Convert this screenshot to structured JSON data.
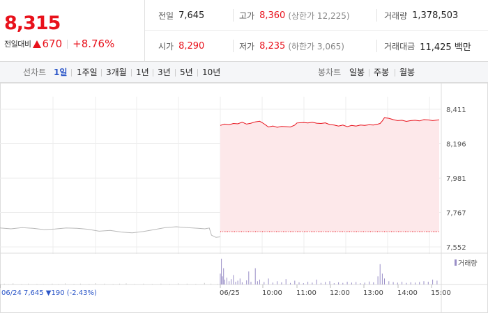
{
  "quote": {
    "price": "8,315",
    "change_label": "전일대비",
    "change_value": "670",
    "change_percent": "+8.76%",
    "direction": "up"
  },
  "stats": {
    "prev_close": {
      "label": "전일",
      "value": "7,645"
    },
    "high": {
      "label": "고가",
      "value": "8,360",
      "sub": "(상한가 12,225)"
    },
    "volume": {
      "label": "거래량",
      "value": "1,378,503"
    },
    "open": {
      "label": "시가",
      "value": "8,290"
    },
    "low": {
      "label": "저가",
      "value": "8,235",
      "sub": "(하한가 3,065)"
    },
    "trade_value": {
      "label": "거래대금",
      "value": "11,425 백만"
    }
  },
  "tabs": {
    "line_label": "선차트",
    "line_tabs": [
      "1일",
      "1주일",
      "3개월",
      "1년",
      "3년",
      "5년",
      "10년"
    ],
    "line_active": "1일",
    "candle_label": "봉차트",
    "candle_tabs": [
      "일봉",
      "주봉",
      "월봉"
    ]
  },
  "chart_data": {
    "type": "line",
    "y_ticks": [
      "8,411",
      "8,196",
      "7,981",
      "7,767",
      "7,552"
    ],
    "y_tick_values": [
      8411,
      8196,
      7981,
      7767,
      7552
    ],
    "x_tick_labels": [
      "06/24",
      "06/25",
      "10:00",
      "11:00",
      "12:00",
      "13:00",
      "14:00",
      "15:00"
    ],
    "prev_day_info": "06/24  7,645 ▼190 (-2.43%)",
    "volume_legend": "거래량",
    "baseline_value": 7645,
    "colors": {
      "today": "#e8111b",
      "prev": "#b8b8b8",
      "fill": "#fde8ea",
      "volume": "#9a8fc7"
    },
    "prev_series": [
      [
        0,
        7670
      ],
      [
        0.05,
        7665
      ],
      [
        0.1,
        7672
      ],
      [
        0.15,
        7668
      ],
      [
        0.2,
        7660
      ],
      [
        0.25,
        7664
      ],
      [
        0.3,
        7670
      ],
      [
        0.35,
        7668
      ],
      [
        0.4,
        7662
      ],
      [
        0.45,
        7650
      ],
      [
        0.5,
        7655
      ],
      [
        0.55,
        7645
      ],
      [
        0.6,
        7640
      ],
      [
        0.65,
        7648
      ],
      [
        0.7,
        7660
      ],
      [
        0.75,
        7672
      ],
      [
        0.8,
        7678
      ],
      [
        0.85,
        7672
      ],
      [
        0.9,
        7668
      ],
      [
        0.93,
        7665
      ],
      [
        0.95,
        7670
      ],
      [
        0.96,
        7625
      ],
      [
        0.98,
        7612
      ],
      [
        1,
        7615
      ]
    ],
    "today_series": [
      [
        0,
        8310
      ],
      [
        0.02,
        8318
      ],
      [
        0.04,
        8314
      ],
      [
        0.06,
        8322
      ],
      [
        0.08,
        8320
      ],
      [
        0.1,
        8330
      ],
      [
        0.12,
        8318
      ],
      [
        0.14,
        8324
      ],
      [
        0.16,
        8332
      ],
      [
        0.18,
        8336
      ],
      [
        0.2,
        8320
      ],
      [
        0.22,
        8300
      ],
      [
        0.24,
        8306
      ],
      [
        0.26,
        8298
      ],
      [
        0.28,
        8304
      ],
      [
        0.3,
        8302
      ],
      [
        0.32,
        8300
      ],
      [
        0.34,
        8312
      ],
      [
        0.35,
        8325
      ],
      [
        0.38,
        8328
      ],
      [
        0.4,
        8325
      ],
      [
        0.42,
        8330
      ],
      [
        0.44,
        8324
      ],
      [
        0.46,
        8322
      ],
      [
        0.48,
        8326
      ],
      [
        0.5,
        8315
      ],
      [
        0.52,
        8312
      ],
      [
        0.54,
        8306
      ],
      [
        0.56,
        8312
      ],
      [
        0.58,
        8302
      ],
      [
        0.6,
        8310
      ],
      [
        0.62,
        8306
      ],
      [
        0.64,
        8312
      ],
      [
        0.66,
        8310
      ],
      [
        0.68,
        8314
      ],
      [
        0.7,
        8312
      ],
      [
        0.72,
        8318
      ],
      [
        0.73,
        8322
      ],
      [
        0.74,
        8338
      ],
      [
        0.75,
        8358
      ],
      [
        0.77,
        8354
      ],
      [
        0.79,
        8346
      ],
      [
        0.81,
        8340
      ],
      [
        0.83,
        8342
      ],
      [
        0.85,
        8335
      ],
      [
        0.87,
        8340
      ],
      [
        0.89,
        8342
      ],
      [
        0.91,
        8338
      ],
      [
        0.93,
        8346
      ],
      [
        0.95,
        8344
      ],
      [
        0.97,
        8340
      ],
      [
        1,
        8345
      ]
    ],
    "volume_series": [
      [
        0.0,
        2
      ],
      [
        0.02,
        3
      ],
      [
        0.04,
        1
      ],
      [
        0.06,
        4
      ],
      [
        0.1,
        2
      ],
      [
        0.13,
        3
      ],
      [
        0.17,
        2
      ],
      [
        0.2,
        1
      ],
      [
        0.24,
        3
      ],
      [
        0.27,
        2
      ],
      [
        0.3,
        4
      ],
      [
        0.34,
        2
      ],
      [
        0.37,
        3
      ],
      [
        0.41,
        2
      ],
      [
        0.44,
        5
      ],
      [
        0.48,
        3
      ],
      [
        0.52,
        2
      ],
      [
        0.55,
        3
      ],
      [
        0.58,
        4
      ],
      [
        0.62,
        2
      ],
      [
        0.66,
        3
      ],
      [
        0.7,
        2
      ],
      [
        0.74,
        3
      ],
      [
        0.78,
        2
      ],
      [
        0.82,
        4
      ],
      [
        0.86,
        3
      ],
      [
        0.9,
        2
      ],
      [
        0.94,
        6
      ],
      [
        0.97,
        3
      ],
      [
        1.0,
        2
      ]
    ],
    "volume_series_today": [
      [
        0.0,
        40
      ],
      [
        0.005,
        95
      ],
      [
        0.01,
        30
      ],
      [
        0.015,
        60
      ],
      [
        0.02,
        18
      ],
      [
        0.03,
        25
      ],
      [
        0.04,
        12
      ],
      [
        0.05,
        20
      ],
      [
        0.06,
        35
      ],
      [
        0.07,
        10
      ],
      [
        0.08,
        14
      ],
      [
        0.09,
        22
      ],
      [
        0.1,
        8
      ],
      [
        0.12,
        15
      ],
      [
        0.13,
        48
      ],
      [
        0.14,
        10
      ],
      [
        0.16,
        60
      ],
      [
        0.17,
        12
      ],
      [
        0.18,
        18
      ],
      [
        0.2,
        9
      ],
      [
        0.22,
        22
      ],
      [
        0.24,
        7
      ],
      [
        0.26,
        12
      ],
      [
        0.28,
        8
      ],
      [
        0.3,
        20
      ],
      [
        0.32,
        6
      ],
      [
        0.34,
        14
      ],
      [
        0.36,
        8
      ],
      [
        0.38,
        5
      ],
      [
        0.4,
        10
      ],
      [
        0.42,
        7
      ],
      [
        0.44,
        18
      ],
      [
        0.46,
        6
      ],
      [
        0.48,
        9
      ],
      [
        0.5,
        12
      ],
      [
        0.52,
        5
      ],
      [
        0.54,
        8
      ],
      [
        0.56,
        6
      ],
      [
        0.58,
        10
      ],
      [
        0.6,
        7
      ],
      [
        0.62,
        9
      ],
      [
        0.64,
        5
      ],
      [
        0.66,
        7
      ],
      [
        0.68,
        11
      ],
      [
        0.7,
        8
      ],
      [
        0.72,
        30
      ],
      [
        0.73,
        75
      ],
      [
        0.74,
        40
      ],
      [
        0.75,
        22
      ],
      [
        0.77,
        12
      ],
      [
        0.79,
        9
      ],
      [
        0.81,
        7
      ],
      [
        0.83,
        10
      ],
      [
        0.85,
        6
      ],
      [
        0.87,
        8
      ],
      [
        0.89,
        7
      ],
      [
        0.91,
        9
      ],
      [
        0.93,
        12
      ],
      [
        0.95,
        10
      ],
      [
        0.97,
        18
      ],
      [
        0.99,
        14
      ]
    ]
  }
}
